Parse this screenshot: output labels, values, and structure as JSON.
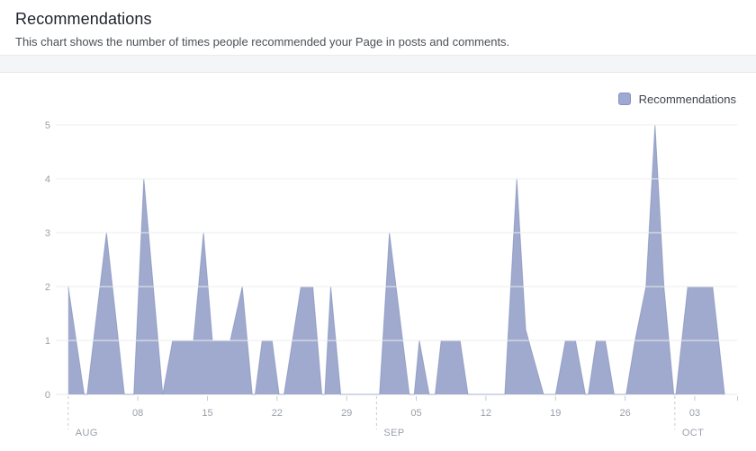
{
  "header": {
    "title": "Recommendations",
    "subtitle": "This chart shows the number of times people recommended your Page in posts and comments."
  },
  "legend": {
    "label": "Recommendations",
    "swatch_color": "#9da9d2",
    "swatch_border": "#8893c2"
  },
  "chart_data": {
    "type": "area",
    "title": "Recommendations",
    "x_unit": "days_since_aug_01",
    "series": [
      {
        "name": "Recommendations",
        "points": [
          [
            0,
            2
          ],
          [
            1.6,
            0
          ],
          [
            1.9,
            0
          ],
          [
            3.85,
            3
          ],
          [
            5.65,
            0
          ],
          [
            6.6,
            0
          ],
          [
            7.6,
            4
          ],
          [
            9.5,
            0
          ],
          [
            10.5,
            1
          ],
          [
            12.6,
            1
          ],
          [
            13.6,
            3
          ],
          [
            14.5,
            1
          ],
          [
            16.3,
            1
          ],
          [
            17.5,
            2
          ],
          [
            18.5,
            0
          ],
          [
            18.8,
            0
          ],
          [
            19.5,
            1
          ],
          [
            20.5,
            1
          ],
          [
            21.2,
            0
          ],
          [
            21.7,
            0
          ],
          [
            23.4,
            2
          ],
          [
            24.6,
            2
          ],
          [
            25.5,
            0
          ],
          [
            25.8,
            0
          ],
          [
            26.4,
            2
          ],
          [
            27.4,
            0
          ],
          [
            31.3,
            0
          ],
          [
            32.3,
            3
          ],
          [
            34.3,
            0
          ],
          [
            34.8,
            0
          ],
          [
            35.3,
            1
          ],
          [
            36.3,
            0
          ],
          [
            36.9,
            0
          ],
          [
            37.5,
            1
          ],
          [
            39.4,
            1
          ],
          [
            40.2,
            0
          ],
          [
            43.9,
            0
          ],
          [
            45.1,
            4
          ],
          [
            46,
            1.2
          ],
          [
            47.8,
            0
          ],
          [
            49,
            0
          ],
          [
            50,
            1
          ],
          [
            51,
            1
          ],
          [
            52,
            0
          ],
          [
            52.3,
            0
          ],
          [
            53.1,
            1
          ],
          [
            54,
            1
          ],
          [
            54.9,
            0
          ],
          [
            56.1,
            0
          ],
          [
            57,
            1
          ],
          [
            58.1,
            2
          ],
          [
            59,
            5
          ],
          [
            59.9,
            2
          ],
          [
            60.9,
            0
          ],
          [
            61.1,
            0
          ],
          [
            62.3,
            2
          ],
          [
            64.8,
            2
          ],
          [
            66,
            0
          ]
        ]
      }
    ],
    "x_ticks": [
      {
        "day": 7,
        "label": "08"
      },
      {
        "day": 14,
        "label": "15"
      },
      {
        "day": 21,
        "label": "22"
      },
      {
        "day": 28,
        "label": "29"
      },
      {
        "day": 35,
        "label": "05"
      },
      {
        "day": 42,
        "label": "12"
      },
      {
        "day": 49,
        "label": "19"
      },
      {
        "day": 56,
        "label": "26"
      },
      {
        "day": 63,
        "label": "03"
      }
    ],
    "month_markers": [
      {
        "day": 0,
        "label": "AUG"
      },
      {
        "day": 31,
        "label": "SEP"
      },
      {
        "day": 61,
        "label": "OCT"
      }
    ],
    "y_ticks": [
      "0",
      "1",
      "2",
      "3",
      "4",
      "5"
    ],
    "ylim": [
      0,
      5
    ],
    "xlim": [
      0,
      67.3
    ],
    "grid": true,
    "legend_position": "top-right",
    "colors": {
      "area_fill": "rgba(128,141,190,0.75)",
      "area_edge": "rgba(125,138,185,0.6)",
      "grid_line": "#ececec",
      "baseline": "#e6e7ea",
      "tick": "#c6cad1",
      "axis_text": "#9aa0aa"
    }
  }
}
